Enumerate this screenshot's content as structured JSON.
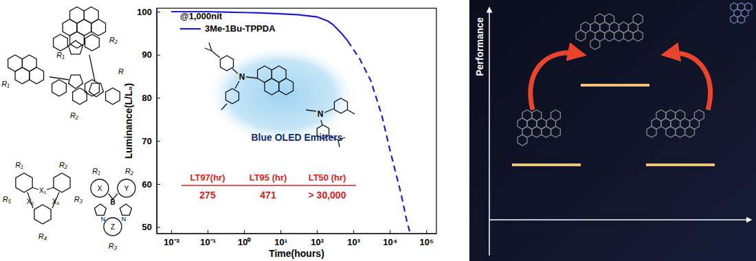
{
  "chart_data": {
    "type": "line",
    "xlabel": "Time(hours)",
    "ylabel": "Luminance(L/L₀)",
    "log": "x",
    "xlim": [
      0.004,
      190000
    ],
    "xticks": [
      {
        "value": 0.01,
        "label": "10⁻²"
      },
      {
        "value": 0.1,
        "label": "10⁻¹"
      },
      {
        "value": 1,
        "label": "10⁰"
      },
      {
        "value": 10,
        "label": "10¹"
      },
      {
        "value": 100,
        "label": "10²"
      },
      {
        "value": 1000,
        "label": "10³"
      },
      {
        "value": 10000,
        "label": "10⁴"
      },
      {
        "value": 100000,
        "label": "10⁵"
      }
    ],
    "ylim": [
      48.5,
      100.8
    ],
    "yticks": [
      50,
      60,
      70,
      80,
      90,
      100
    ],
    "grid": false,
    "legend": "upper left",
    "series": [
      {
        "name": "3Me-1Bu-TPPDA",
        "color": "#1c1cd6",
        "line_style": "solid",
        "x": [
          0.01,
          0.03,
          0.1,
          0.3,
          1,
          3,
          10,
          30,
          100,
          200,
          275,
          471,
          700
        ],
        "values": [
          100,
          100,
          100,
          99.9,
          99.8,
          99.7,
          99.5,
          99.3,
          98.8,
          97.8,
          97,
          95,
          93.2
        ]
      },
      {
        "color": "#1c1cd6",
        "line_style": "dashed",
        "x": [
          700,
          1500,
          3000,
          6000,
          10000,
          20000,
          30000,
          35000
        ],
        "values": [
          93.2,
          89,
          84,
          76,
          68,
          58,
          51,
          49
        ]
      }
    ],
    "annotations": [
      "@1,000nit",
      "Blue OLED Emitters"
    ],
    "molecule_labels": [
      "N",
      "N"
    ],
    "table": {
      "header": [
        "LT97(hr)",
        "LT95 (hr)",
        "LT50 (hr)"
      ],
      "rows": [
        [
          "275",
          "471",
          "> 30,000"
        ]
      ]
    }
  },
  "structures": [
    [
      "R₁",
      "R₂"
    ],
    [
      "R₁",
      "R₂",
      "R"
    ],
    [
      "R₁",
      "R₂",
      "X₁",
      "X₂",
      "X₃",
      "R₃",
      "R₄",
      "R₅"
    ],
    [
      "R₁",
      "R₂",
      "X",
      "Y",
      "B",
      "N",
      "N",
      "Z",
      "R₃"
    ]
  ],
  "diagram": {
    "y_label": "Performance"
  }
}
